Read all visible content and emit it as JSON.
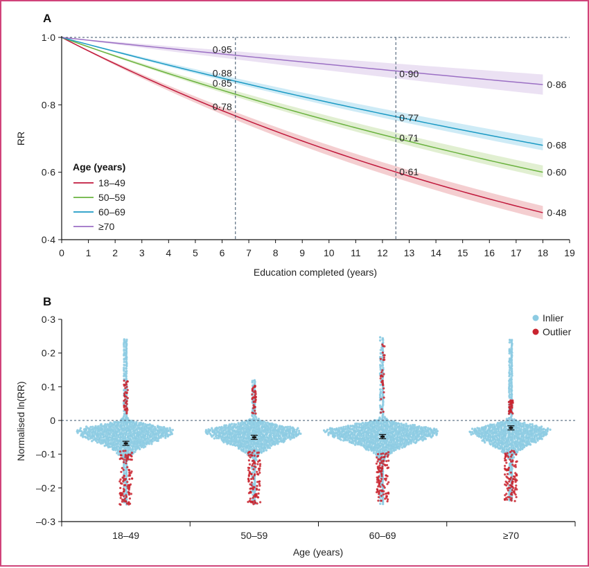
{
  "chart_data": [
    {
      "panel": "A",
      "type": "line",
      "xlabel": "Education completed (years)",
      "ylabel": "RR",
      "xlim": [
        0,
        19
      ],
      "ylim": [
        0.4,
        1.0
      ],
      "xticks": [
        "0",
        "1",
        "2",
        "3",
        "4",
        "5",
        "6",
        "7",
        "8",
        "9",
        "10",
        "11",
        "12",
        "13",
        "14",
        "15",
        "16",
        "17",
        "18",
        "19"
      ],
      "yticks": [
        "0·4",
        "0·6",
        "0·8",
        "1·0"
      ],
      "ytick_values": [
        0.4,
        0.6,
        0.8,
        1.0
      ],
      "reference_line_y": 1.0,
      "vertical_reference_x": [
        6.5,
        12.5
      ],
      "legend_title": "Age (years)",
      "series": [
        {
          "name": "18–49",
          "color": "#c0183b",
          "band": "#f2c5c8",
          "rr_at_18": 0.48,
          "ci_at_18": [
            0.46,
            0.5
          ],
          "labels": [
            {
              "x": 6.5,
              "y": 0.78,
              "text": "0·78"
            },
            {
              "x": 12.5,
              "y": 0.61,
              "text": "0·61"
            },
            {
              "x": 18,
              "y": 0.48,
              "text": "0·48"
            }
          ]
        },
        {
          "name": "50–59",
          "color": "#6ab23f",
          "band": "#dcecc9",
          "rr_at_18": 0.6,
          "ci_at_18": [
            0.585,
            0.62
          ],
          "labels": [
            {
              "x": 6.5,
              "y": 0.85,
              "text": "0·85"
            },
            {
              "x": 12.5,
              "y": 0.71,
              "text": "0·71"
            },
            {
              "x": 18,
              "y": 0.6,
              "text": "0·60"
            }
          ]
        },
        {
          "name": "60–69",
          "color": "#1b9ac4",
          "band": "#c6e7f4",
          "rr_at_18": 0.68,
          "ci_at_18": [
            0.665,
            0.7
          ],
          "labels": [
            {
              "x": 6.5,
              "y": 0.88,
              "text": "0·88"
            },
            {
              "x": 12.5,
              "y": 0.77,
              "text": "0·77"
            },
            {
              "x": 18,
              "y": 0.68,
              "text": "0·68"
            }
          ]
        },
        {
          "name": "≥70",
          "color": "#9b6fc4",
          "band": "#e7dcf1",
          "rr_at_18": 0.86,
          "ci_at_18": [
            0.83,
            0.89
          ],
          "labels": [
            {
              "x": 6.5,
              "y": 0.95,
              "text": "0·95"
            },
            {
              "x": 12.5,
              "y": 0.9,
              "text": "0·90"
            },
            {
              "x": 18,
              "y": 0.86,
              "text": "0·86"
            }
          ]
        }
      ]
    },
    {
      "panel": "B",
      "type": "scatter",
      "subtype": "beeswarm",
      "xlabel": "Age (years)",
      "ylabel": "Normalised ln(RR)",
      "ylim": [
        -0.3,
        0.3
      ],
      "yticks": [
        "–0·3",
        "–0·2",
        "–0·1",
        "0",
        "0·1",
        "0·2",
        "0·3"
      ],
      "ytick_values": [
        -0.3,
        -0.2,
        -0.1,
        0,
        0.1,
        0.2,
        0.3
      ],
      "reference_line_y": 0,
      "legend": [
        {
          "name": "Inlier",
          "color": "#8ccbe2"
        },
        {
          "name": "Outlier",
          "color": "#c9242f"
        }
      ],
      "groups": [
        {
          "name": "18–49",
          "mean": -0.068,
          "min": -0.25,
          "max": 0.24,
          "outlier_high": 0.12,
          "outlier_low": -0.25,
          "width_scale": 1.0
        },
        {
          "name": "50–59",
          "mean": -0.05,
          "min": -0.25,
          "max": 0.12,
          "outlier_high": 0.11,
          "outlier_low": -0.25,
          "width_scale": 1.0
        },
        {
          "name": "60–69",
          "mean": -0.048,
          "min": -0.25,
          "max": 0.245,
          "outlier_high": 0.23,
          "outlier_low": -0.24,
          "width_scale": 1.2
        },
        {
          "name": "≥70",
          "mean": -0.022,
          "min": -0.24,
          "max": 0.24,
          "outlier_high": 0.06,
          "outlier_low": -0.24,
          "width_scale": 0.85
        }
      ]
    }
  ]
}
